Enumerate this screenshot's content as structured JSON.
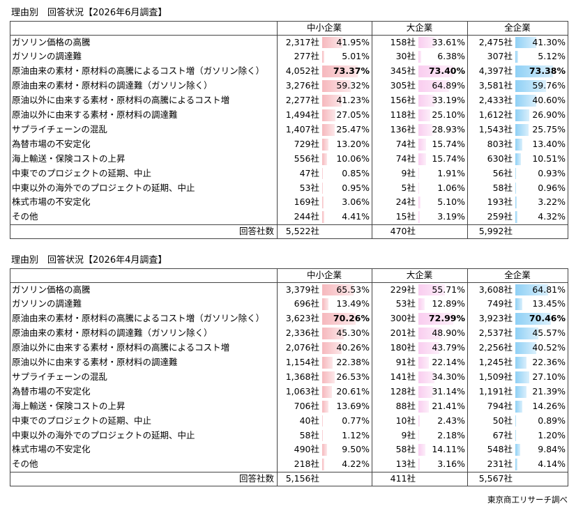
{
  "source": "東京商工リサーチ調べ",
  "tables": [
    {
      "title": "理由別　回答状況【2026年6月調査】",
      "columns": [
        "中小企業",
        "大企業",
        "全企業"
      ],
      "colors": [
        "#f6b8bd",
        "#f9cdef",
        "#8fd0f5"
      ],
      "rows": [
        {
          "label": "ガソリン価格の高騰",
          "cells": [
            {
              "count": "2,317社",
              "pct": {
                "value": 41.95,
                "label": "41.95%"
              }
            },
            {
              "count": "158社",
              "pct": {
                "value": 33.61,
                "label": "33.61%"
              }
            },
            {
              "count": "2,475社",
              "pct": {
                "value": 41.3,
                "label": "41.30%"
              }
            }
          ]
        },
        {
          "label": "ガソリンの調達難",
          "cells": [
            {
              "count": "277社",
              "pct": {
                "value": 5.01,
                "label": "5.01%"
              }
            },
            {
              "count": "30社",
              "pct": {
                "value": 6.38,
                "label": "6.38%"
              }
            },
            {
              "count": "307社",
              "pct": {
                "value": 5.12,
                "label": "5.12%"
              }
            }
          ]
        },
        {
          "label": "原油由来の素材・原材料の高騰によるコスト増（ガソリン除く）",
          "cells": [
            {
              "count": "4,052社",
              "pct": {
                "value": 73.37,
                "label": "73.37%"
              }
            },
            {
              "count": "345社",
              "pct": {
                "value": 73.4,
                "label": "73.40%"
              }
            },
            {
              "count": "4,397社",
              "pct": {
                "value": 73.38,
                "label": "73.38%"
              }
            }
          ]
        },
        {
          "label": "原油由来の素材・原材料の調達難（ガソリン除く）",
          "cells": [
            {
              "count": "3,276社",
              "pct": {
                "value": 59.32,
                "label": "59.32%"
              }
            },
            {
              "count": "305社",
              "pct": {
                "value": 64.89,
                "label": "64.89%"
              }
            },
            {
              "count": "3,581社",
              "pct": {
                "value": 59.76,
                "label": "59.76%"
              }
            }
          ]
        },
        {
          "label": "原油以外に由来する素材・原材料の高騰によるコスト増",
          "cells": [
            {
              "count": "2,277社",
              "pct": {
                "value": 41.23,
                "label": "41.23%"
              }
            },
            {
              "count": "156社",
              "pct": {
                "value": 33.19,
                "label": "33.19%"
              }
            },
            {
              "count": "2,433社",
              "pct": {
                "value": 40.6,
                "label": "40.60%"
              }
            }
          ]
        },
        {
          "label": "原油以外に由来する素材・原材料の調達難",
          "cells": [
            {
              "count": "1,494社",
              "pct": {
                "value": 27.05,
                "label": "27.05%"
              }
            },
            {
              "count": "118社",
              "pct": {
                "value": 25.1,
                "label": "25.10%"
              }
            },
            {
              "count": "1,612社",
              "pct": {
                "value": 26.9,
                "label": "26.90%"
              }
            }
          ]
        },
        {
          "label": "サプライチェーンの混乱",
          "cells": [
            {
              "count": "1,407社",
              "pct": {
                "value": 25.47,
                "label": "25.47%"
              }
            },
            {
              "count": "136社",
              "pct": {
                "value": 28.93,
                "label": "28.93%"
              }
            },
            {
              "count": "1,543社",
              "pct": {
                "value": 25.75,
                "label": "25.75%"
              }
            }
          ]
        },
        {
          "label": "為替市場の不安定化",
          "cells": [
            {
              "count": "729社",
              "pct": {
                "value": 13.2,
                "label": "13.20%"
              }
            },
            {
              "count": "74社",
              "pct": {
                "value": 15.74,
                "label": "15.74%"
              }
            },
            {
              "count": "803社",
              "pct": {
                "value": 13.4,
                "label": "13.40%"
              }
            }
          ]
        },
        {
          "label": "海上輸送・保険コストの上昇",
          "cells": [
            {
              "count": "556社",
              "pct": {
                "value": 10.06,
                "label": "10.06%"
              }
            },
            {
              "count": "74社",
              "pct": {
                "value": 15.74,
                "label": "15.74%"
              }
            },
            {
              "count": "630社",
              "pct": {
                "value": 10.51,
                "label": "10.51%"
              }
            }
          ]
        },
        {
          "label": "中東でのプロジェクトの延期、中止",
          "cells": [
            {
              "count": "47社",
              "pct": {
                "value": 0.85,
                "label": "0.85%"
              }
            },
            {
              "count": "9社",
              "pct": {
                "value": 1.91,
                "label": "1.91%"
              }
            },
            {
              "count": "56社",
              "pct": {
                "value": 0.93,
                "label": "0.93%"
              }
            }
          ]
        },
        {
          "label": "中東以外の海外でのプロジェクトの延期、中止",
          "cells": [
            {
              "count": "53社",
              "pct": {
                "value": 0.95,
                "label": "0.95%"
              }
            },
            {
              "count": "5社",
              "pct": {
                "value": 1.06,
                "label": "1.06%"
              }
            },
            {
              "count": "58社",
              "pct": {
                "value": 0.96,
                "label": "0.96%"
              }
            }
          ]
        },
        {
          "label": "株式市場の不安定化",
          "cells": [
            {
              "count": "169社",
              "pct": {
                "value": 3.06,
                "label": "3.06%"
              }
            },
            {
              "count": "24社",
              "pct": {
                "value": 5.1,
                "label": "5.10%"
              }
            },
            {
              "count": "193社",
              "pct": {
                "value": 3.22,
                "label": "3.22%"
              }
            }
          ]
        },
        {
          "label": "その他",
          "cells": [
            {
              "count": "244社",
              "pct": {
                "value": 4.41,
                "label": "4.41%"
              }
            },
            {
              "count": "15社",
              "pct": {
                "value": 3.19,
                "label": "3.19%"
              }
            },
            {
              "count": "259社",
              "pct": {
                "value": 4.32,
                "label": "4.32%"
              }
            }
          ]
        }
      ],
      "total": {
        "label": "回答社数",
        "counts": [
          "5,522社",
          "470社",
          "5,992社"
        ]
      }
    },
    {
      "title": "理由別　回答状況【2026年4月調査】",
      "columns": [
        "中小企業",
        "大企業",
        "全企業"
      ],
      "colors": [
        "#f6b8bd",
        "#f9cdef",
        "#8fd0f5"
      ],
      "rows": [
        {
          "label": "ガソリン価格の高騰",
          "cells": [
            {
              "count": "3,379社",
              "pct": {
                "value": 65.53,
                "label": "65.53%"
              }
            },
            {
              "count": "229社",
              "pct": {
                "value": 55.71,
                "label": "55.71%"
              }
            },
            {
              "count": "3,608社",
              "pct": {
                "value": 64.81,
                "label": "64.81%"
              }
            }
          ]
        },
        {
          "label": "ガソリンの調達難",
          "cells": [
            {
              "count": "696社",
              "pct": {
                "value": 13.49,
                "label": "13.49%"
              }
            },
            {
              "count": "53社",
              "pct": {
                "value": 12.89,
                "label": "12.89%"
              }
            },
            {
              "count": "749社",
              "pct": {
                "value": 13.45,
                "label": "13.45%"
              }
            }
          ]
        },
        {
          "label": "原油由来の素材・原材料の高騰によるコスト増（ガソリン除く）",
          "cells": [
            {
              "count": "3,623社",
              "pct": {
                "value": 70.26,
                "label": "70.26%"
              }
            },
            {
              "count": "300社",
              "pct": {
                "value": 72.99,
                "label": "72.99%"
              }
            },
            {
              "count": "3,923社",
              "pct": {
                "value": 70.46,
                "label": "70.46%"
              }
            }
          ]
        },
        {
          "label": "原油由来の素材・原材料の調達難（ガソリン除く）",
          "cells": [
            {
              "count": "2,336社",
              "pct": {
                "value": 45.3,
                "label": "45.30%"
              }
            },
            {
              "count": "201社",
              "pct": {
                "value": 48.9,
                "label": "48.90%"
              }
            },
            {
              "count": "2,537社",
              "pct": {
                "value": 45.57,
                "label": "45.57%"
              }
            }
          ]
        },
        {
          "label": "原油以外に由来する素材・原材料の高騰によるコスト増",
          "cells": [
            {
              "count": "2,076社",
              "pct": {
                "value": 40.26,
                "label": "40.26%"
              }
            },
            {
              "count": "180社",
              "pct": {
                "value": 43.79,
                "label": "43.79%"
              }
            },
            {
              "count": "2,256社",
              "pct": {
                "value": 40.52,
                "label": "40.52%"
              }
            }
          ]
        },
        {
          "label": "原油以外に由来する素材・原材料の調達難",
          "cells": [
            {
              "count": "1,154社",
              "pct": {
                "value": 22.38,
                "label": "22.38%"
              }
            },
            {
              "count": "91社",
              "pct": {
                "value": 22.14,
                "label": "22.14%"
              }
            },
            {
              "count": "1,245社",
              "pct": {
                "value": 22.36,
                "label": "22.36%"
              }
            }
          ]
        },
        {
          "label": "サプライチェーンの混乱",
          "cells": [
            {
              "count": "1,368社",
              "pct": {
                "value": 26.53,
                "label": "26.53%"
              }
            },
            {
              "count": "141社",
              "pct": {
                "value": 34.3,
                "label": "34.30%"
              }
            },
            {
              "count": "1,509社",
              "pct": {
                "value": 27.1,
                "label": "27.10%"
              }
            }
          ]
        },
        {
          "label": "為替市場の不安定化",
          "cells": [
            {
              "count": "1,063社",
              "pct": {
                "value": 20.61,
                "label": "20.61%"
              }
            },
            {
              "count": "128社",
              "pct": {
                "value": 31.14,
                "label": "31.14%"
              }
            },
            {
              "count": "1,191社",
              "pct": {
                "value": 21.39,
                "label": "21.39%"
              }
            }
          ]
        },
        {
          "label": "海上輸送・保険コストの上昇",
          "cells": [
            {
              "count": "706社",
              "pct": {
                "value": 13.69,
                "label": "13.69%"
              }
            },
            {
              "count": "88社",
              "pct": {
                "value": 21.41,
                "label": "21.41%"
              }
            },
            {
              "count": "794社",
              "pct": {
                "value": 14.26,
                "label": "14.26%"
              }
            }
          ]
        },
        {
          "label": "中東でのプロジェクトの延期、中止",
          "cells": [
            {
              "count": "40社",
              "pct": {
                "value": 0.77,
                "label": "0.77%"
              }
            },
            {
              "count": "10社",
              "pct": {
                "value": 2.43,
                "label": "2.43%"
              }
            },
            {
              "count": "50社",
              "pct": {
                "value": 0.89,
                "label": "0.89%"
              }
            }
          ]
        },
        {
          "label": "中東以外の海外でのプロジェクトの延期、中止",
          "cells": [
            {
              "count": "58社",
              "pct": {
                "value": 1.12,
                "label": "1.12%"
              }
            },
            {
              "count": "9社",
              "pct": {
                "value": 2.18,
                "label": "2.18%"
              }
            },
            {
              "count": "67社",
              "pct": {
                "value": 1.2,
                "label": "1.20%"
              }
            }
          ]
        },
        {
          "label": "株式市場の不安定化",
          "cells": [
            {
              "count": "490社",
              "pct": {
                "value": 9.5,
                "label": "9.50%"
              }
            },
            {
              "count": "58社",
              "pct": {
                "value": 14.11,
                "label": "14.11%"
              }
            },
            {
              "count": "548社",
              "pct": {
                "value": 9.84,
                "label": "9.84%"
              }
            }
          ]
        },
        {
          "label": "その他",
          "cells": [
            {
              "count": "218社",
              "pct": {
                "value": 4.22,
                "label": "4.22%"
              }
            },
            {
              "count": "13社",
              "pct": {
                "value": 3.16,
                "label": "3.16%"
              }
            },
            {
              "count": "231社",
              "pct": {
                "value": 4.14,
                "label": "4.14%"
              }
            }
          ]
        }
      ],
      "total": {
        "label": "回答社数",
        "counts": [
          "5,156社",
          "411社",
          "5,567社"
        ]
      }
    }
  ]
}
